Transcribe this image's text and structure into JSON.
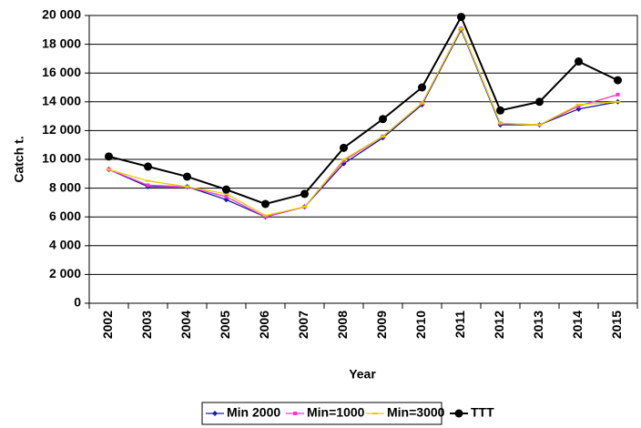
{
  "chart_data": {
    "type": "line",
    "y_label": "Catch t.",
    "x_label": "Year",
    "categories": [
      "2002",
      "2003",
      "2004",
      "2005",
      "2006",
      "2007",
      "2008",
      "2009",
      "2010",
      "2011",
      "2012",
      "2013",
      "2014",
      "2015"
    ],
    "series": [
      {
        "name": "Min 2000",
        "color": "#1a1aa6",
        "values": [
          9300,
          8100,
          8100,
          7200,
          6000,
          6700,
          9700,
          11500,
          13800,
          19000,
          12400,
          12400,
          13500,
          14000
        ]
      },
      {
        "name": "Min=1000",
        "color": "#ff33cc",
        "values": [
          9300,
          8200,
          8100,
          7400,
          6000,
          6700,
          9900,
          11600,
          13900,
          19100,
          12500,
          12400,
          13700,
          14500
        ]
      },
      {
        "name": "Min=3000",
        "color": "#e0d000",
        "values": [
          9300,
          8500,
          8100,
          7600,
          6100,
          6700,
          10000,
          11600,
          13900,
          19100,
          12500,
          12400,
          13800,
          14000
        ]
      },
      {
        "name": "TTT",
        "color": "#000000",
        "values": [
          10200,
          9500,
          8800,
          7900,
          6900,
          7600,
          10800,
          12800,
          15000,
          19900,
          13400,
          14000,
          16800,
          15500
        ]
      }
    ],
    "ylim": [
      0,
      20000
    ],
    "yticks": [
      0,
      {
        "value": 2000,
        "label": "2 000"
      },
      {
        "value": 4000,
        "label": "4 000"
      },
      {
        "value": 6000,
        "label": "6 000"
      },
      {
        "value": 8000,
        "label": "8 000"
      },
      {
        "value": 10000,
        "label": "10 000"
      },
      {
        "value": 12000,
        "label": "12 000"
      },
      {
        "value": 14000,
        "label": "14 000"
      },
      {
        "value": 16000,
        "label": "16 000"
      },
      {
        "value": 18000,
        "label": "18 000"
      },
      {
        "value": 20000,
        "label": "20 000"
      }
    ],
    "grid": true,
    "legend": "bottom"
  }
}
